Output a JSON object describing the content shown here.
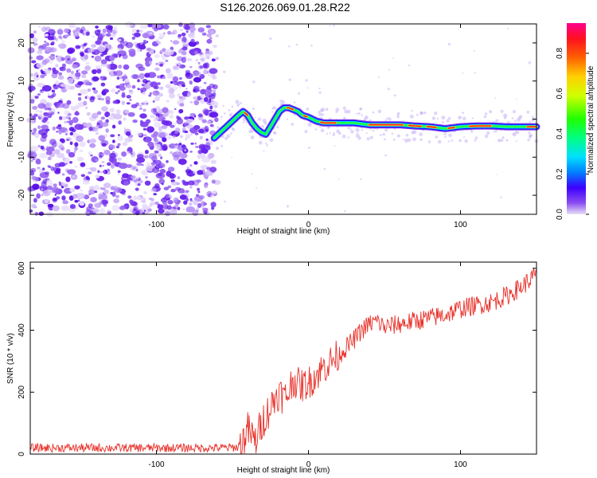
{
  "title": "S126.2026.069.01.28.R22",
  "chart_data": [
    {
      "type": "heatmap",
      "name": "spectrogram",
      "xlabel": "Height of straight line (km)",
      "ylabel": "Frequency (Hz)",
      "xlim": [
        -183,
        150
      ],
      "ylim": [
        -25,
        25
      ],
      "xticks": [
        -100,
        0,
        100
      ],
      "yticks": [
        -20,
        -10,
        0,
        10,
        20
      ],
      "noise_region_x": [
        -183,
        -60
      ],
      "ridge": {
        "x": [
          -62,
          -58,
          -54,
          -50,
          -46,
          -43,
          -40,
          -37,
          -34,
          -31,
          -28,
          -25,
          -22,
          -19,
          -16,
          -13,
          -10,
          -7,
          -4,
          0,
          5,
          10,
          20,
          30,
          40,
          50,
          60,
          70,
          80,
          90,
          100,
          110,
          120,
          130,
          140,
          150
        ],
        "y": [
          -5,
          -3.5,
          -2,
          -0.5,
          1,
          2,
          1,
          -1,
          -2.5,
          -3.5,
          -4,
          -2,
          0,
          2,
          3,
          3,
          2.5,
          2,
          1,
          0.5,
          -0.5,
          -1,
          -1,
          -1,
          -1.5,
          -1.5,
          -1.5,
          -1.8,
          -2,
          -2.5,
          -2,
          -1.8,
          -1.8,
          -2,
          -2,
          -2
        ]
      },
      "colorbar": {
        "label": "Normalized spectral amplitude",
        "range": [
          0,
          0.95
        ],
        "ticks": [
          "0.0",
          "0.2",
          "0.4",
          "0.6",
          "0.8"
        ]
      }
    },
    {
      "type": "line",
      "name": "snr",
      "xlabel": "Height of straight line (km)",
      "ylabel": "SNR (10 * v/v)",
      "xlim": [
        -183,
        150
      ],
      "ylim": [
        0,
        620
      ],
      "xticks": [
        -100,
        0,
        100
      ],
      "yticks": [
        0,
        200,
        400,
        600
      ],
      "color": "#e8312a",
      "trend": {
        "x": [
          -183,
          -60,
          -45,
          -40,
          -35,
          -30,
          -25,
          -20,
          -15,
          -10,
          -5,
          0,
          10,
          20,
          30,
          35,
          40,
          45,
          50,
          60,
          70,
          80,
          90,
          100,
          110,
          120,
          130,
          140,
          150
        ],
        "y": [
          20,
          20,
          22,
          80,
          40,
          110,
          150,
          200,
          180,
          240,
          220,
          230,
          280,
          320,
          370,
          400,
          420,
          430,
          410,
          420,
          430,
          440,
          450,
          470,
          480,
          490,
          510,
          540,
          580
        ]
      }
    }
  ]
}
